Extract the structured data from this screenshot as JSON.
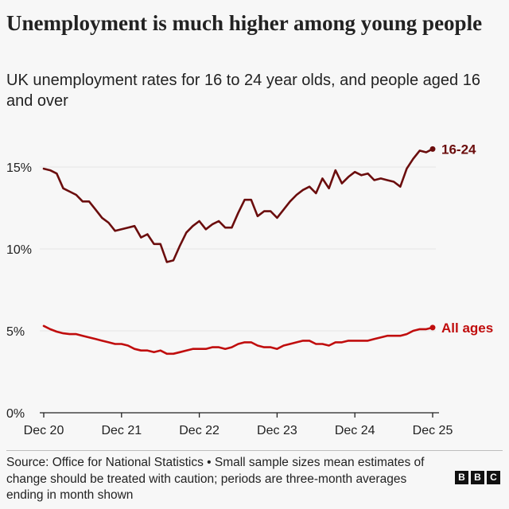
{
  "chart_data": {
    "type": "line",
    "title": "Unemployment is much higher among young people",
    "subtitle": "UK unemployment rates for 16 to 24 year olds, and people aged 16 and over",
    "xlabel": "",
    "ylabel": "",
    "ylim": [
      0,
      16.5
    ],
    "yticks": [
      0,
      5,
      10,
      15
    ],
    "ytick_labels": [
      "0%",
      "5%",
      "10%",
      "15%"
    ],
    "xtick_labels": [
      "Dec 20",
      "Dec 21",
      "Dec 22",
      "Dec 23",
      "Dec 24",
      "Dec 25"
    ],
    "xticks": [
      "2020-12",
      "2021-12",
      "2022-12",
      "2023-12",
      "2024-12",
      "2025-12"
    ],
    "grid": true,
    "legend": "direct labels at line ends",
    "x": [
      "2020-12",
      "2021-01",
      "2021-02",
      "2021-03",
      "2021-04",
      "2021-05",
      "2021-06",
      "2021-07",
      "2021-08",
      "2021-09",
      "2021-10",
      "2021-11",
      "2021-12",
      "2022-01",
      "2022-02",
      "2022-03",
      "2022-04",
      "2022-05",
      "2022-06",
      "2022-07",
      "2022-08",
      "2022-09",
      "2022-10",
      "2022-11",
      "2022-12",
      "2023-01",
      "2023-02",
      "2023-03",
      "2023-04",
      "2023-05",
      "2023-06",
      "2023-07",
      "2023-08",
      "2023-09",
      "2023-10",
      "2023-11",
      "2023-12",
      "2024-01",
      "2024-02",
      "2024-03",
      "2024-04",
      "2024-05",
      "2024-06",
      "2024-07",
      "2024-08",
      "2024-09",
      "2024-10",
      "2024-11",
      "2024-12",
      "2025-01",
      "2025-02",
      "2025-03",
      "2025-04",
      "2025-05",
      "2025-06",
      "2025-07",
      "2025-08",
      "2025-09",
      "2025-10",
      "2025-11",
      "2025-12"
    ],
    "series": [
      {
        "name": "16-24",
        "color": "#6b0d0d",
        "values": [
          14.9,
          14.8,
          14.6,
          13.7,
          13.5,
          13.3,
          12.9,
          12.9,
          12.4,
          11.9,
          11.6,
          11.1,
          11.2,
          11.3,
          11.4,
          10.7,
          10.9,
          10.3,
          10.3,
          9.2,
          9.3,
          10.2,
          11.0,
          11.4,
          11.7,
          11.2,
          11.5,
          11.7,
          11.3,
          11.3,
          12.2,
          13.0,
          13.0,
          12.0,
          12.3,
          12.3,
          11.9,
          12.4,
          12.9,
          13.3,
          13.6,
          13.8,
          13.4,
          14.3,
          13.7,
          14.8,
          14.0,
          14.4,
          14.7,
          14.5,
          14.6,
          14.2,
          14.3,
          14.2,
          14.1,
          13.8,
          14.9,
          15.5,
          16.0,
          15.9,
          16.1
        ]
      },
      {
        "name": "All ages",
        "color": "#c00d0d",
        "values": [
          5.3,
          5.1,
          4.95,
          4.85,
          4.8,
          4.8,
          4.7,
          4.6,
          4.5,
          4.4,
          4.3,
          4.2,
          4.2,
          4.1,
          3.9,
          3.8,
          3.8,
          3.7,
          3.8,
          3.6,
          3.6,
          3.7,
          3.8,
          3.9,
          3.9,
          3.9,
          4.0,
          4.0,
          3.9,
          4.0,
          4.2,
          4.3,
          4.3,
          4.1,
          4.0,
          4.0,
          3.9,
          4.1,
          4.2,
          4.3,
          4.4,
          4.4,
          4.2,
          4.2,
          4.1,
          4.3,
          4.3,
          4.4,
          4.4,
          4.4,
          4.4,
          4.5,
          4.6,
          4.7,
          4.7,
          4.7,
          4.8,
          5.0,
          5.1,
          5.1,
          5.2
        ]
      }
    ]
  },
  "footer": {
    "source": "Source: Office for National Statistics • Small sample sizes mean estimates of change should be treated with caution; periods are three-month averages ending in month shown"
  },
  "logo": {
    "letters": [
      "B",
      "B",
      "C"
    ]
  },
  "colors": {
    "background": "#f7f7f7",
    "grid": "#e4e4e4",
    "axis": "#222222"
  }
}
